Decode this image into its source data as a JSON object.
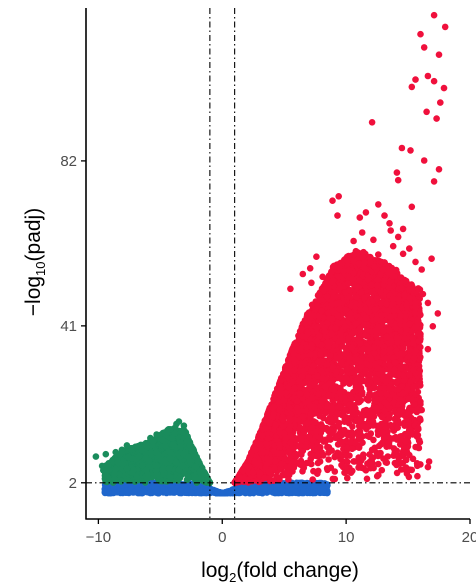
{
  "chart_data": {
    "type": "scatter",
    "title": "",
    "xlabel": {
      "pre": "log",
      "sub": "2",
      "post": "(fold change)"
    },
    "ylabel": {
      "pre": "−log",
      "sub": "10",
      "post": "(padj)"
    },
    "xlim": [
      -11,
      20
    ],
    "ylim": [
      -7,
      120
    ],
    "x_ticks": [
      -10,
      0,
      10,
      20
    ],
    "x_tick_labels": [
      "−10",
      "0",
      "10",
      "20"
    ],
    "y_ticks": [
      2,
      41,
      82
    ],
    "y_tick_labels": [
      "2",
      "41",
      "82"
    ],
    "thresholds": {
      "log2fc": [
        -1,
        1
      ],
      "neg_log10_padj": 2
    },
    "legend": "none",
    "grid": false,
    "colors": {
      "up": "#f0103c",
      "down": "#1a8c5c",
      "not_significant": "#1f66cc",
      "threshold_line": "#000000",
      "axis": "#000000"
    },
    "series": [
      {
        "group": "not_significant",
        "band": {
          "x_range": [
            -9.5,
            8.5
          ],
          "y_max": 2
        }
      },
      {
        "group": "down",
        "envelope": [
          [
            -9.5,
            6
          ],
          [
            -8,
            10
          ],
          [
            -6,
            12
          ],
          [
            -4,
            16
          ],
          [
            -3,
            15
          ],
          [
            -2,
            8
          ],
          [
            -1,
            2
          ]
        ],
        "points": [
          [
            -10.2,
            8.5
          ],
          [
            -9.7,
            6.2
          ],
          [
            -9.6,
            5.1
          ],
          [
            -9.4,
            9.1
          ],
          [
            -8.6,
            9.6
          ],
          [
            -8.1,
            10.2
          ],
          [
            -7.7,
            11.3
          ],
          [
            -6.8,
            11.1
          ],
          [
            -6.5,
            10.2
          ],
          [
            -5.8,
            13.1
          ],
          [
            -5.6,
            12.2
          ],
          [
            -5.3,
            14.0
          ],
          [
            -4.8,
            12.6
          ],
          [
            -4.5,
            14.6
          ],
          [
            -4.2,
            15.3
          ],
          [
            -3.7,
            16.6
          ],
          [
            -3.5,
            17.2
          ],
          [
            -3.3,
            14.8
          ],
          [
            -3.1,
            16.2
          ],
          [
            -2.6,
            11.2
          ],
          [
            -2.3,
            9.1
          ]
        ]
      },
      {
        "group": "up",
        "envelope": [
          [
            1,
            2
          ],
          [
            2,
            7
          ],
          [
            3,
            14
          ],
          [
            4,
            22
          ],
          [
            5,
            30
          ],
          [
            6,
            38
          ],
          [
            7,
            45
          ],
          [
            8,
            50
          ],
          [
            9,
            56
          ],
          [
            10,
            58
          ],
          [
            11,
            60
          ],
          [
            12,
            58
          ],
          [
            13,
            57
          ],
          [
            14,
            55
          ],
          [
            15,
            52
          ],
          [
            16,
            50
          ]
        ],
        "points": [
          [
            17.1,
            118.2
          ],
          [
            18.0,
            115.3
          ],
          [
            16.0,
            113.5
          ],
          [
            16.3,
            110.2
          ],
          [
            17.5,
            108.4
          ],
          [
            15.6,
            102.2
          ],
          [
            16.6,
            103.1
          ],
          [
            17.1,
            101.8
          ],
          [
            15.3,
            100.4
          ],
          [
            17.9,
            100.1
          ],
          [
            16.5,
            94.2
          ],
          [
            17.6,
            96.5
          ],
          [
            17.3,
            92.5
          ],
          [
            12.1,
            91.6
          ],
          [
            14.5,
            85.2
          ],
          [
            14.1,
            79.1
          ],
          [
            14.2,
            77.2
          ],
          [
            15.2,
            84.6
          ],
          [
            16.3,
            82.1
          ],
          [
            17.1,
            76.9
          ],
          [
            17.5,
            79.9
          ],
          [
            15.3,
            70.6
          ],
          [
            13.1,
            68.4
          ],
          [
            9.4,
            73.2
          ],
          [
            8.9,
            72.1
          ],
          [
            9.3,
            68.4
          ],
          [
            11.1,
            67.9
          ],
          [
            11.6,
            69.2
          ],
          [
            12.6,
            71.2
          ],
          [
            13.5,
            66.5
          ],
          [
            10.6,
            62.1
          ],
          [
            11.3,
            64.2
          ],
          [
            12.2,
            62.4
          ],
          [
            13.6,
            64.7
          ],
          [
            14.2,
            63.1
          ],
          [
            14.6,
            65.1
          ],
          [
            13.8,
            60.8
          ],
          [
            15.1,
            60.2
          ],
          [
            10.1,
            57.2
          ],
          [
            11.4,
            59.3
          ],
          [
            12.6,
            58.7
          ],
          [
            14.6,
            58.9
          ],
          [
            15.6,
            56.9
          ],
          [
            16.1,
            55.0
          ],
          [
            16.9,
            57.7
          ],
          [
            7.6,
            58.2
          ],
          [
            7.1,
            55.3
          ],
          [
            7.2,
            51.7
          ],
          [
            8.1,
            53.2
          ],
          [
            6.5,
            53.9
          ],
          [
            5.5,
            50.2
          ],
          [
            13.1,
            52.3
          ],
          [
            15.1,
            50.1
          ],
          [
            16.2,
            48.9
          ],
          [
            16.6,
            46.7
          ],
          [
            17.4,
            44.1
          ],
          [
            17.0,
            40.9
          ],
          [
            15.1,
            41.5
          ],
          [
            14.1,
            38.0
          ],
          [
            16.6,
            35.2
          ],
          [
            15.5,
            33.0
          ],
          [
            14.6,
            30.8
          ],
          [
            14.1,
            27.2
          ],
          [
            15.6,
            24.0
          ],
          [
            16.1,
            20.1
          ],
          [
            15.1,
            15.2
          ],
          [
            14.6,
            9.8
          ],
          [
            15.3,
            5.2
          ],
          [
            16.6,
            5.9
          ],
          [
            16.7,
            7.3
          ],
          [
            12.1,
            10.2
          ],
          [
            13.2,
            7.1
          ],
          [
            11.6,
            5.1
          ],
          [
            12.6,
            3.9
          ],
          [
            10.1,
            4.8
          ],
          [
            10.6,
            14.1
          ],
          [
            13.5,
            11.1
          ]
        ]
      }
    ]
  }
}
